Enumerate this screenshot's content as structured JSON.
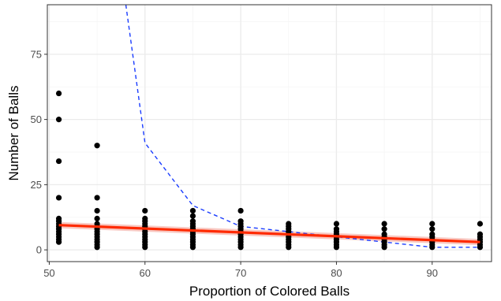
{
  "chart_data": {
    "type": "scatter",
    "title": "",
    "xlabel": "Proportion of Colored Balls",
    "ylabel": "Number of Balls",
    "xlim": [
      49.8,
      96.2
    ],
    "ylim": [
      -4.5,
      94
    ],
    "x_ticks": [
      50,
      60,
      70,
      80,
      90
    ],
    "y_ticks": [
      0,
      25,
      50,
      75
    ],
    "grid": true,
    "legend": "none",
    "colors": {
      "points": "#000000",
      "fit_line": "#ff2a00",
      "fit_band": "#f4a39a",
      "dashed_curve": "#1a3cff",
      "grid_major": "#ebebeb",
      "grid_minor": "#f5f5f5",
      "panel_border": "#333333"
    },
    "series": [
      {
        "kind": "points",
        "groups": [
          {
            "x": 51,
            "y": [
              60,
              50,
              34,
              20,
              12,
              11,
              10,
              9,
              8,
              7,
              6,
              5,
              4,
              3
            ]
          },
          {
            "x": 55,
            "y": [
              40,
              20,
              15,
              12,
              10,
              9,
              8,
              7,
              6,
              5,
              4,
              3,
              2,
              1
            ]
          },
          {
            "x": 60,
            "y": [
              15,
              12,
              11,
              10,
              9,
              8,
              7,
              6,
              5,
              4,
              3,
              2,
              1
            ]
          },
          {
            "x": 65,
            "y": [
              15,
              13,
              11,
              10,
              9,
              8,
              7,
              6,
              5,
              4,
              3,
              2,
              1
            ]
          },
          {
            "x": 70,
            "y": [
              15,
              11,
              10,
              9,
              8,
              7,
              6,
              5,
              4,
              3,
              2,
              1
            ]
          },
          {
            "x": 75,
            "y": [
              10,
              9,
              8,
              7,
              6,
              5,
              4,
              3,
              2,
              1
            ]
          },
          {
            "x": 80,
            "y": [
              10,
              8,
              7,
              6,
              5,
              4,
              3,
              2,
              1
            ]
          },
          {
            "x": 85,
            "y": [
              10,
              8,
              6,
              5,
              4,
              3,
              2,
              1
            ]
          },
          {
            "x": 90,
            "y": [
              10,
              8,
              6,
              5,
              4,
              3,
              2,
              1
            ]
          },
          {
            "x": 95,
            "y": [
              10,
              6,
              5,
              4,
              3,
              2,
              1
            ]
          }
        ]
      },
      {
        "kind": "line",
        "x": [
          51,
          95
        ],
        "y": [
          9.5,
          3.0
        ],
        "band_halfwidth": 1.2
      },
      {
        "kind": "dashed",
        "x": [
          58,
          60,
          65,
          70,
          75,
          80,
          85,
          90,
          95
        ],
        "y": [
          94,
          41,
          17,
          9,
          7,
          5,
          3,
          1,
          1
        ]
      }
    ]
  }
}
